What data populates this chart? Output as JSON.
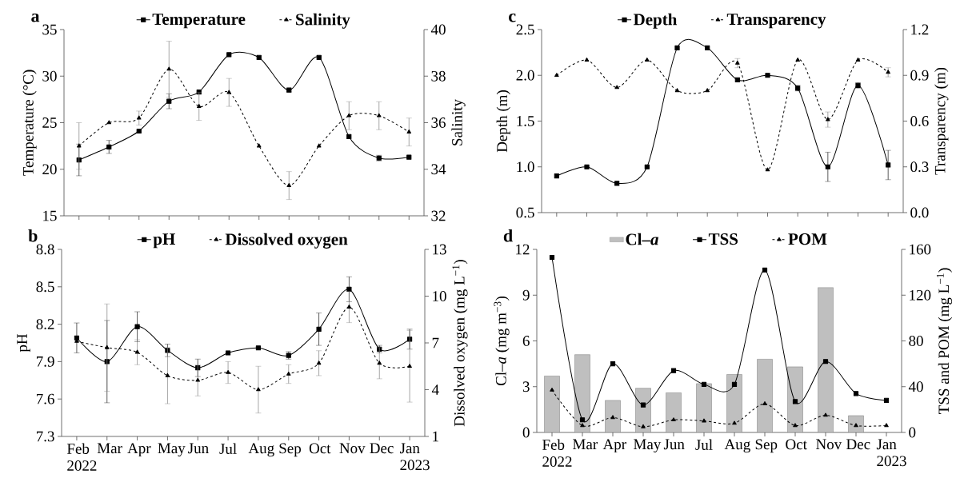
{
  "chart_data": [
    {
      "type": "line",
      "title": "a",
      "legend": "top",
      "categories": [
        null,
        null,
        null,
        null,
        null,
        null,
        null,
        null,
        null,
        null,
        null,
        null
      ],
      "ylabel": "Temperature (°C)",
      "y2label": "Salinity",
      "ylim": [
        15,
        35
      ],
      "yticks": [
        15,
        20,
        25,
        30,
        35
      ],
      "y2lim": [
        32,
        40
      ],
      "y2ticks": [
        32,
        34,
        36,
        38,
        40
      ],
      "series": [
        {
          "name": "Temperature",
          "color": "#000000",
          "marker": "square",
          "line_style": "solid",
          "values": [
            21.0,
            22.4,
            24.1,
            27.3,
            28.3,
            32.3,
            32.0,
            28.5,
            32.0,
            23.5,
            21.2,
            21.3
          ],
          "errors": [
            1.7,
            0.7,
            null,
            0.8,
            null,
            null,
            null,
            0.2,
            null,
            null,
            0.3,
            null
          ]
        },
        {
          "name": "Salinity",
          "color": "#000000",
          "marker": "triangle",
          "line_style": "dashed",
          "axis": "y2",
          "values": [
            35.0,
            36.0,
            36.2,
            38.3,
            36.7,
            37.3,
            35.0,
            33.3,
            35.0,
            36.3,
            36.3,
            35.6
          ],
          "errors": [
            1.0,
            null,
            0.3,
            1.2,
            0.6,
            0.6,
            null,
            0.6,
            null,
            0.6,
            0.6,
            0.6
          ]
        }
      ]
    },
    {
      "type": "line",
      "title": "b",
      "legend": "top",
      "categories": [
        "Feb 2022",
        "Mar",
        "Apr",
        "May",
        "Jun",
        "Jul",
        "Aug",
        "Sep",
        "Oct",
        "Nov",
        "Dec",
        "Jan 2023"
      ],
      "ylabel": "pH",
      "y2label": "Dissolved oxygen (mg L$^{−1}$)",
      "ylim": [
        7.3,
        8.8
      ],
      "yticks": [
        7.3,
        7.6,
        7.9,
        8.2,
        8.5,
        8.8
      ],
      "y2lim": [
        1,
        13
      ],
      "y2ticks": [
        1,
        4,
        7,
        10,
        13
      ],
      "series": [
        {
          "name": "pH",
          "color": "#000000",
          "marker": "square",
          "line_style": "solid",
          "values": [
            8.09,
            7.9,
            8.18,
            7.99,
            7.85,
            7.97,
            8.01,
            7.95,
            8.16,
            8.48,
            8.0,
            8.08
          ],
          "errors": [
            0.12,
            0.33,
            0.12,
            0.05,
            0.07,
            null,
            null,
            0.03,
            0.13,
            0.1,
            0.03,
            0.08
          ]
        },
        {
          "name": "Dissolved oxygen",
          "color": "#000000",
          "marker": "triangle",
          "line_style": "dashed",
          "axis": "y2",
          "values": [
            7.1,
            6.7,
            6.4,
            4.9,
            4.6,
            5.1,
            4.0,
            5.0,
            5.7,
            9.3,
            5.7,
            5.5
          ],
          "errors": [
            null,
            2.8,
            0.8,
            1.8,
            1.0,
            0.7,
            1.5,
            0.6,
            0.8,
            1.0,
            1.0,
            2.3
          ]
        }
      ]
    },
    {
      "type": "line",
      "title": "c",
      "legend": "top",
      "categories": [
        null,
        null,
        null,
        null,
        null,
        null,
        null,
        null,
        null,
        null,
        null,
        null
      ],
      "ylabel": "Depth  (m)",
      "y2label": "Transparency  (m)",
      "ylim": [
        0.5,
        2.5
      ],
      "yticks": [
        0.5,
        {
          "value": 1,
          "label": "1.0"
        },
        1.5,
        {
          "value": 2,
          "label": "2.0"
        },
        2.5
      ],
      "y2lim": [
        0,
        1.2
      ],
      "y2ticks": [
        {
          "value": 0,
          "label": "0.0"
        },
        0.3,
        0.6,
        0.9,
        1.2
      ],
      "series": [
        {
          "name": "Depth",
          "color": "#000000",
          "marker": "square",
          "line_style": "solid",
          "values": [
            0.9,
            1.0,
            0.82,
            1.0,
            2.3,
            2.3,
            1.95,
            2.0,
            1.86,
            1.0,
            1.89,
            1.02
          ],
          "errors": [
            null,
            null,
            null,
            null,
            null,
            null,
            null,
            null,
            0.03,
            0.16,
            0.03,
            0.16
          ]
        },
        {
          "name": "Transparency",
          "color": "#000000",
          "marker": "triangle",
          "line_style": "dashed",
          "axis": "y2",
          "values": [
            0.9,
            1.0,
            0.82,
            1.0,
            0.8,
            0.8,
            0.98,
            0.28,
            1.0,
            0.61,
            1.0,
            0.92
          ],
          "errors": [
            null,
            null,
            null,
            null,
            null,
            null,
            0.03,
            null,
            null,
            0.05,
            null,
            0.03
          ]
        }
      ]
    },
    {
      "type": "line",
      "title": "d",
      "legend": "top",
      "categories": [
        "Feb 2022",
        "Mar",
        "Apr",
        "May",
        "Jun",
        "Jul",
        "Aug",
        "Sep",
        "Oct",
        "Nov",
        "Dec",
        "Jan 2023"
      ],
      "ylabel": "Cl–*a*  (mg m$^{−3}$)",
      "y2label": "TSS and POM (mg L$^{−1}$)",
      "ylim": [
        0,
        12
      ],
      "yticks": [
        0,
        3,
        6,
        9,
        12
      ],
      "y2lim": [
        0,
        160
      ],
      "y2ticks": [
        0,
        40,
        80,
        120,
        160
      ],
      "series": [
        {
          "name": "Cl–*a*",
          "type": "bar",
          "color": "#bfbfbf",
          "values": [
            3.7,
            5.1,
            2.1,
            2.9,
            2.6,
            3.2,
            3.8,
            4.8,
            4.3,
            9.5,
            1.1,
            null
          ]
        },
        {
          "name": "TSS",
          "color": "#000000",
          "marker": "square",
          "line_style": "solid",
          "axis": "y2",
          "values": [
            153,
            11,
            60,
            24,
            54,
            42,
            42,
            142,
            27,
            62,
            34,
            28
          ]
        },
        {
          "name": "POM",
          "color": "#000000",
          "marker": "triangle",
          "line_style": "dashed",
          "axis": "y2",
          "values": [
            37,
            6,
            13,
            5,
            11,
            10,
            8,
            25,
            6,
            15,
            6,
            6
          ]
        }
      ]
    }
  ]
}
